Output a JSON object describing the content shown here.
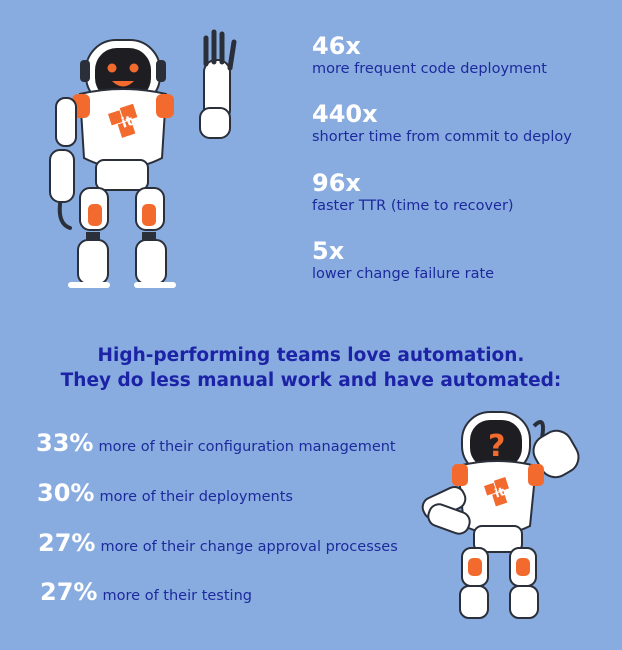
{
  "stats": [
    {
      "value": "46x",
      "label": "more frequent code deployment"
    },
    {
      "value": "440x",
      "label": "shorter time from commit to deploy"
    },
    {
      "value": "96x",
      "label": "faster TTR (time to recover)"
    },
    {
      "value": "5x",
      "label": "lower change failure rate"
    }
  ],
  "headline": {
    "line1": "High-performing teams love automation.",
    "line2": "They do less manual work and have automated:"
  },
  "automation": [
    {
      "value": "33%",
      "label": "more of their configuration management"
    },
    {
      "value": "30%",
      "label": "more of their deployments"
    },
    {
      "value": "27%",
      "label": "more of their change approval processes"
    },
    {
      "value": "27%",
      "label": "more of their testing"
    }
  ],
  "robots": {
    "waving": {
      "icon": "waving-robot-icon",
      "badge": "it"
    },
    "thinking": {
      "icon": "thinking-robot-icon",
      "badge": "it",
      "face_symbol": "?"
    }
  },
  "colors": {
    "background": "#89ace0",
    "number": "#ffffff",
    "text": "#1c2a9c",
    "robot_accent": "#f26a2e"
  }
}
